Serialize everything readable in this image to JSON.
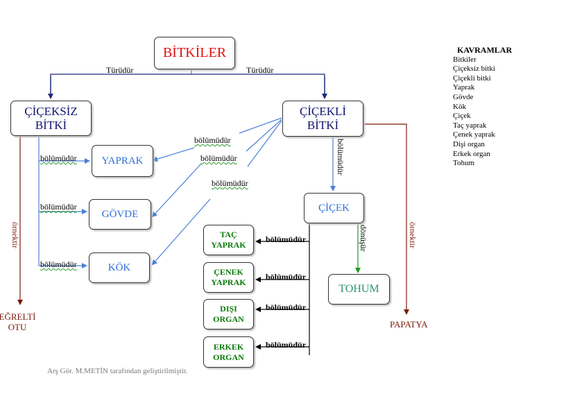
{
  "root": "BİTKİLER",
  "flowering": [
    "ÇİÇEKLİ",
    "BİTKİ"
  ],
  "nonflowering": [
    "ÇİÇEKSİZ",
    "BİTKİ"
  ],
  "parts": {
    "leaf": "YAPRAK",
    "stem": "GÖVDE",
    "root": "KÖK"
  },
  "flower": "ÇİÇEK",
  "seed": "TOHUM",
  "flower_parts": [
    [
      "TAÇ",
      "YAPRAK"
    ],
    [
      "ÇENEK",
      "YAPRAK"
    ],
    [
      "DIŞI",
      "ORGAN"
    ],
    [
      "ERKEK",
      "ORGAN"
    ]
  ],
  "labels": {
    "type_of": "Türüdür",
    "part_of": "bölümüdür",
    "example": "örnektir",
    "becomes": "dönüşür"
  },
  "examples": {
    "fern": [
      "EĞRELTİ",
      "OTU"
    ],
    "daisy": "PAPATYA"
  },
  "concepts": {
    "title": "KAVRAMLAR",
    "items": [
      "Bitkiler",
      "Çiçeksiz bitki",
      "Çiçekli bitki",
      "Yaprak",
      "Gövde",
      "Kök",
      "Çiçek",
      "Taç yaprak",
      "Çenek yaprak",
      "Dişi organ",
      "Erkek organ",
      "Tohum"
    ]
  },
  "credit": "Arş Gör. M.METİN tarafından geliştirilmiştir.",
  "colors": {
    "title_red": "#e01010",
    "navy": "#10106e",
    "blue_text": "#2f6fd6",
    "green_text": "#0a7a0a",
    "teal": "#2e9078",
    "brown": "#7a1a0a",
    "arrow_blue": "#4a7fd8",
    "arrow_navy": "#1a2a7a",
    "arrow_green": "#1a9a1a",
    "arrow_brown": "#7a1a0a"
  }
}
